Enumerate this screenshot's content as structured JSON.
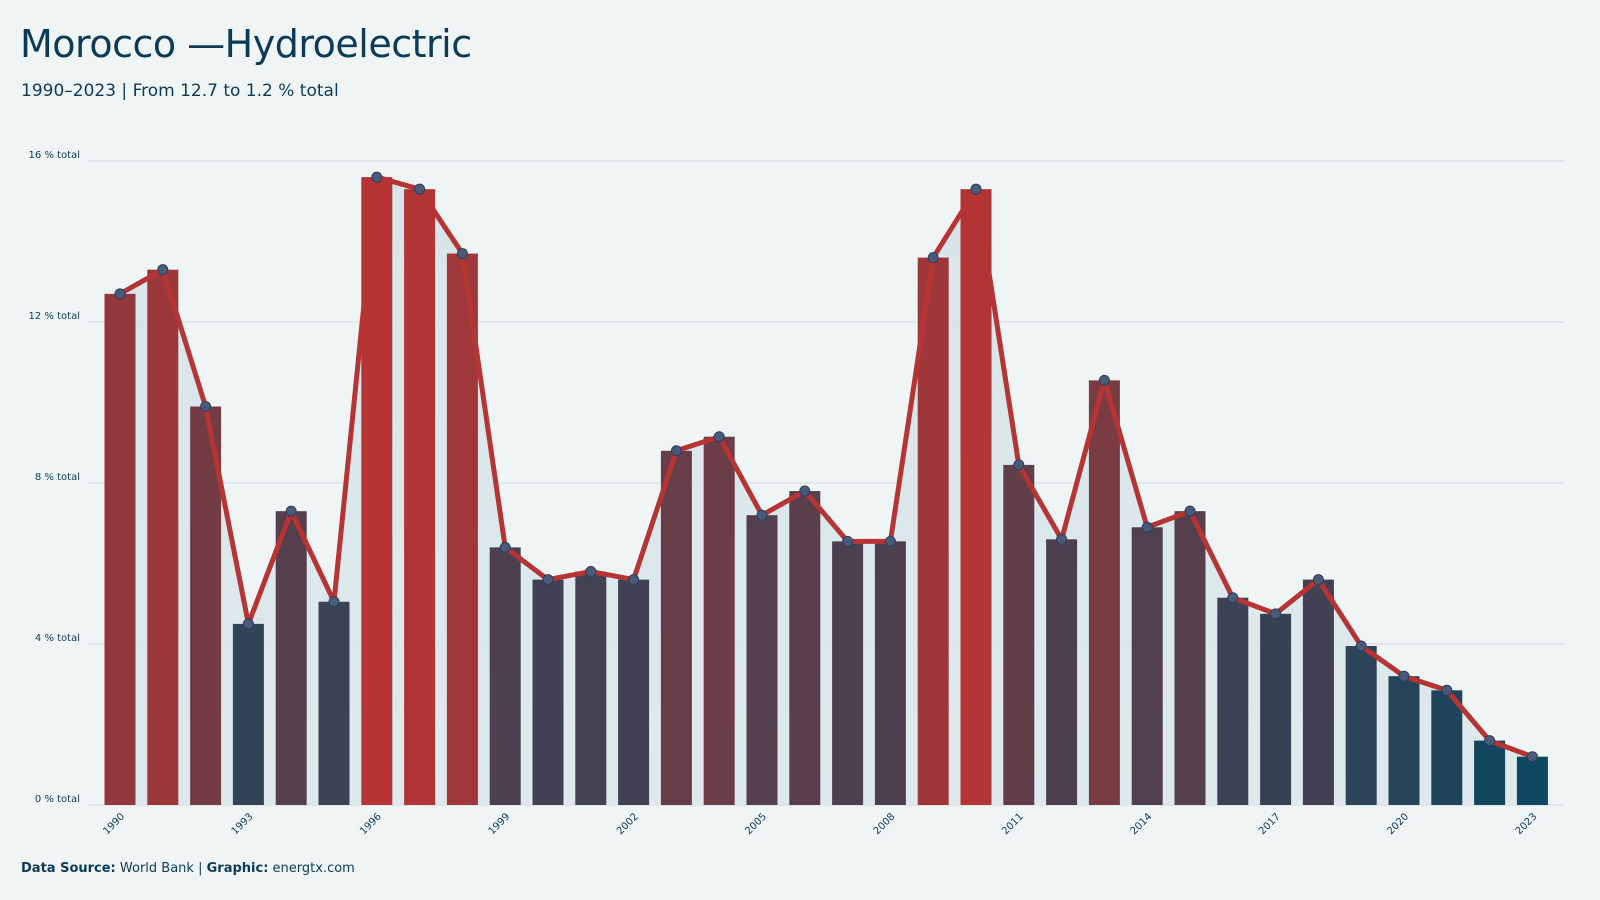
{
  "header": {
    "title": "Morocco —Hydroelectric",
    "subtitle": "1990–2023 | From 12.7 to 1.2 % total"
  },
  "footer": {
    "source_label": "Data Source:",
    "source_value": "World Bank",
    "separator": "|",
    "graphic_label": "Graphic:",
    "graphic_value": "energtx.com"
  },
  "colors": {
    "background": "#eff5f5",
    "high": "#b63434",
    "low": "#0d4760",
    "line": "#b63434",
    "area": "#d6e3e8",
    "grid": "#cfd9dc"
  },
  "chart_data": {
    "type": "bar",
    "x": [
      1990,
      1991,
      1992,
      1993,
      1994,
      1995,
      1996,
      1997,
      1998,
      1999,
      2000,
      2001,
      2002,
      2003,
      2004,
      2005,
      2006,
      2007,
      2008,
      2009,
      2010,
      2011,
      2012,
      2013,
      2014,
      2015,
      2016,
      2017,
      2018,
      2019,
      2020,
      2021,
      2022,
      2023
    ],
    "values": [
      12.7,
      13.3,
      9.9,
      4.5,
      7.3,
      5.05,
      15.6,
      15.3,
      13.7,
      6.4,
      5.6,
      5.8,
      5.6,
      8.8,
      9.15,
      7.2,
      7.8,
      6.55,
      6.55,
      13.6,
      15.3,
      8.45,
      6.6,
      10.55,
      6.9,
      7.3,
      5.15,
      4.75,
      5.6,
      3.95,
      3.2,
      2.85,
      1.6,
      1.2
    ],
    "series": [
      {
        "type": "bar",
        "values": [
          12.7,
          13.3,
          9.9,
          4.5,
          7.3,
          5.05,
          15.6,
          15.3,
          13.7,
          6.4,
          5.6,
          5.8,
          5.6,
          8.8,
          9.15,
          7.2,
          7.8,
          6.55,
          6.55,
          13.6,
          15.3,
          8.45,
          6.6,
          10.55,
          6.9,
          7.3,
          5.15,
          4.75,
          5.6,
          3.95,
          3.2,
          2.85,
          1.6,
          1.2
        ]
      },
      {
        "type": "line",
        "values": [
          12.7,
          13.3,
          9.9,
          4.5,
          7.3,
          5.05,
          15.6,
          15.3,
          13.7,
          6.4,
          5.6,
          5.8,
          5.6,
          8.8,
          9.15,
          7.2,
          7.8,
          6.55,
          6.55,
          13.6,
          15.3,
          8.45,
          6.6,
          10.55,
          6.9,
          7.3,
          5.15,
          4.75,
          5.6,
          3.95,
          3.2,
          2.85,
          1.6,
          1.2
        ]
      }
    ],
    "x_tick_labels": [
      "1990",
      "1993",
      "1996",
      "1999",
      "2002",
      "2005",
      "2008",
      "2011",
      "2014",
      "2017",
      "2020",
      "2023"
    ],
    "y_ticks": [
      0,
      4,
      8,
      12,
      16
    ],
    "y_tick_labels": [
      "0 % total",
      "4 % total",
      "8 % total",
      "12 % total",
      "16 % total"
    ],
    "ylim": [
      0,
      16
    ],
    "grid": true,
    "legend": "none"
  }
}
